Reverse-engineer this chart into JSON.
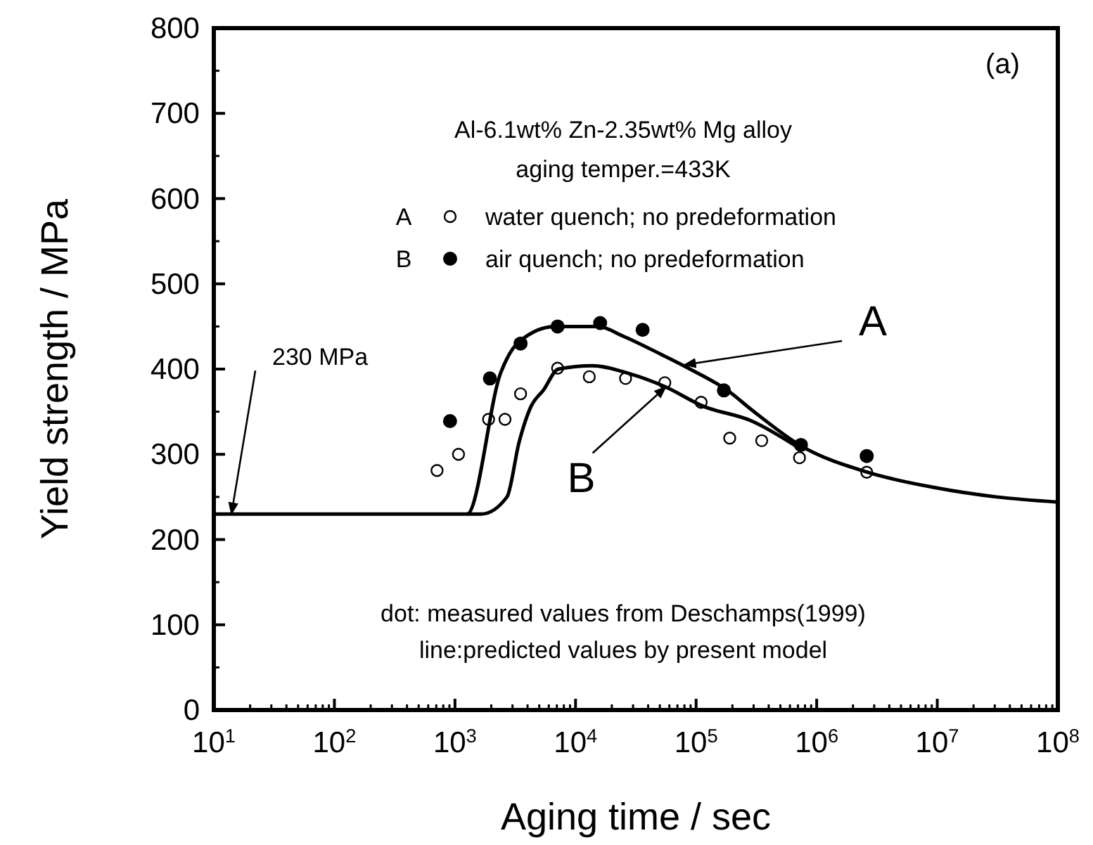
{
  "chart_data": {
    "type": "scatter",
    "title": "Al-6.1wt% Zn-2.35wt% Mg alloy",
    "subtitle": "aging temper.=433K",
    "xlabel": "Aging time / sec",
    "ylabel": "Yield strength / MPa",
    "log": "x",
    "xlim": [
      10,
      100000000
    ],
    "ylim": [
      0,
      800
    ],
    "xticks": [
      {
        "value": 10,
        "label": "10$^{1}$"
      },
      {
        "value": 100,
        "label": "10$^{2}$"
      },
      {
        "value": 1000,
        "label": "10$^{3}$"
      },
      {
        "value": 10000,
        "label": "10$^{4}$"
      },
      {
        "value": 100000,
        "label": "10$^{5}$"
      },
      {
        "value": 1000000,
        "label": "10$^{6}$"
      },
      {
        "value": 10000000,
        "label": "10$^{7}$"
      },
      {
        "value": 100000000,
        "label": "10$^{8}$"
      }
    ],
    "yticks": [
      0,
      100,
      200,
      300,
      400,
      500,
      600,
      700,
      800
    ],
    "grid": false,
    "legend": "top",
    "series": [
      {
        "name": "water quench; no predeformation",
        "marker": "circle-open",
        "color": "#000000",
        "x": [
          710,
          1070,
          1900,
          2600,
          3500,
          7100,
          13000,
          26000,
          55000,
          110000,
          190000,
          350000,
          720000,
          2600000
        ],
        "values": [
          281,
          300,
          341,
          341,
          371,
          401,
          391,
          389,
          384,
          361,
          319,
          316,
          296,
          279
        ]
      },
      {
        "name": "air quench; no predeformation",
        "marker": "circle",
        "color": "#000000",
        "x": [
          910,
          1950,
          3500,
          7100,
          16000,
          36000,
          170000,
          740000,
          2600000
        ],
        "values": [
          339,
          389,
          430,
          450,
          454,
          446,
          375,
          311,
          298
        ]
      },
      {
        "type": "line",
        "marker": "none",
        "line_style": "solid",
        "color": "#000000",
        "x": [
          10,
          1260,
          2400,
          3400,
          6800,
          15500,
          24500,
          50000,
          89000,
          182000,
          290000,
          740000,
          2630000,
          9500000,
          31000000,
          100000000
        ],
        "values": [
          230,
          230,
          396,
          432,
          450,
          450,
          439,
          418,
          400,
          375,
          352,
          310,
          279,
          261,
          250,
          244
        ]
      },
      {
        "type": "line",
        "marker": "none",
        "line_style": "solid",
        "color": "#000000",
        "x": [
          1260,
          1660,
          2700,
          3400,
          4300,
          5400,
          7200,
          13800,
          27500,
          56000,
          112000,
          290000,
          740000
        ],
        "values": [
          230,
          230,
          250,
          314,
          357,
          375,
          400,
          404,
          395,
          379,
          357,
          339,
          306
        ]
      }
    ],
    "annotations": [
      "(a)",
      "A",
      "B",
      {
        "text": "A",
        "x": 80000,
        "y": 405
      },
      {
        "text": "B",
        "x": 56000,
        "y": 379
      },
      {
        "text": "230 MPa",
        "x": 14,
        "y": 230
      },
      "dot: measured values from Deschamps(1999)",
      "line:predicted values by present model"
    ]
  }
}
